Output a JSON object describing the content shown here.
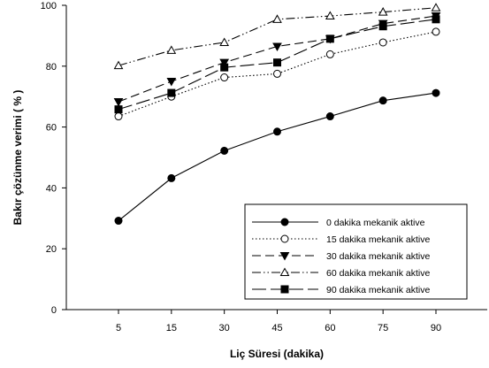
{
  "chart_data": {
    "type": "line",
    "xlabel": "Liç Süresi (dakika)",
    "ylabel": "Bakır çözünme verimi ( % )",
    "x": [
      5,
      15,
      30,
      45,
      60,
      75,
      90
    ],
    "x_tick_labels": [
      "5",
      "15",
      "30",
      "45",
      "60",
      "75",
      "90"
    ],
    "y_ticks": [
      0,
      20,
      40,
      60,
      80,
      100
    ],
    "ylim": [
      0,
      100
    ],
    "grid": false,
    "legend_position": "bottom-right",
    "series": [
      {
        "name": "0  dakika mekanik aktive",
        "values": [
          29.2,
          43.2,
          52.2,
          58.5,
          63.5,
          68.7,
          71.2
        ],
        "marker": "filled-circle",
        "dash": "",
        "color": "#000000"
      },
      {
        "name": "15 dakika mekanik aktive",
        "values": [
          63.5,
          70.0,
          76.3,
          77.5,
          83.9,
          87.8,
          91.3
        ],
        "marker": "open-circle",
        "dash": "1.5,2.5",
        "color": "#000000"
      },
      {
        "name": "30 dakika mekanik aktive",
        "values": [
          68.3,
          75.0,
          81.2,
          86.5,
          89.0,
          94.0,
          96.5
        ],
        "marker": "filled-triangle-down",
        "dash": "10,5",
        "color": "#000000"
      },
      {
        "name": "60 dakika mekanik aktive",
        "values": [
          80.2,
          85.2,
          87.8,
          95.4,
          96.5,
          97.8,
          99.2
        ],
        "marker": "open-triangle-up",
        "dash": "10,3,1.5,3,1.5,3",
        "color": "#000000"
      },
      {
        "name": "90 dakika mekanik aktive",
        "values": [
          65.8,
          71.2,
          79.6,
          81.2,
          89.0,
          93.1,
          95.4
        ],
        "marker": "filled-square",
        "dash": "16,5",
        "color": "#000000"
      }
    ]
  }
}
